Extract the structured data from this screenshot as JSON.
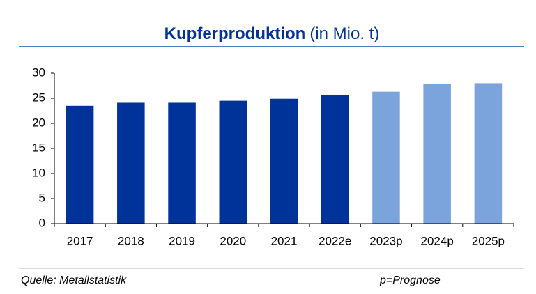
{
  "chart_data": {
    "type": "bar",
    "title": "Kupferproduktion",
    "subtitle": "(in Mio. t)",
    "categories": [
      "2017",
      "2018",
      "2019",
      "2020",
      "2021",
      "2022e",
      "2023p",
      "2024p",
      "2025p"
    ],
    "values": [
      23.5,
      24.1,
      24.1,
      24.5,
      24.9,
      25.7,
      26.3,
      27.8,
      28.0
    ],
    "colors": [
      "#003399",
      "#003399",
      "#003399",
      "#003399",
      "#003399",
      "#003399",
      "#7ba4dc",
      "#7ba4dc",
      "#7ba4dc"
    ],
    "ylim": [
      0,
      30
    ],
    "yticks": [
      0,
      5,
      10,
      15,
      20,
      25,
      30
    ],
    "grid": false,
    "source": "Quelle: Metallstatistik",
    "note": "p=Prognose"
  }
}
